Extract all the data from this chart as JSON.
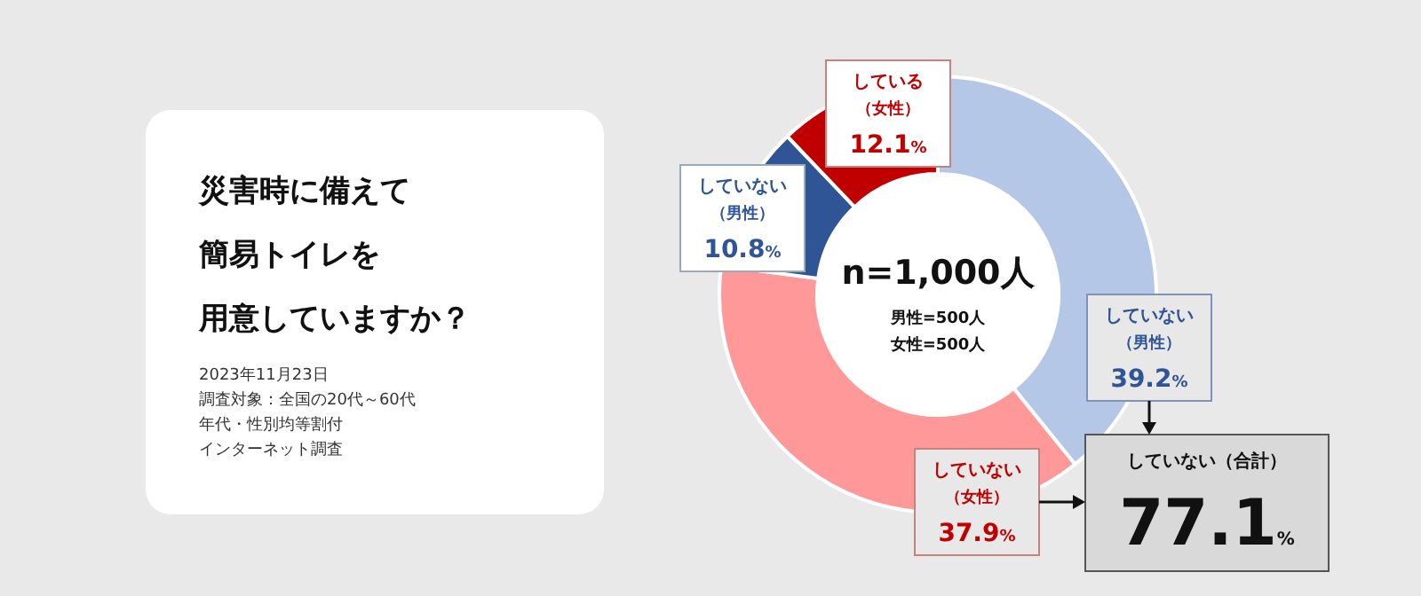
{
  "chart_data": {
    "type": "donut",
    "title": "災害時に備えて簡易トイレを用意していますか？",
    "categories": [
      "していない（男性）",
      "していない（女性）",
      "していない（男性）",
      "している（女性）"
    ],
    "values": [
      39.2,
      37.9,
      10.8,
      12.1
    ],
    "colors": [
      "#b4c7e7",
      "#ff9999",
      "#2f5597",
      "#c00000"
    ],
    "value_labels": [
      "39.2%",
      "37.9%",
      "10.8%",
      "12.1%"
    ],
    "annotations": [
      "n=1,000人",
      "男性=500人",
      "女性=500人",
      "2023年11月23日",
      "調査対象：全国の20代～60代",
      "年代・性別均等割付",
      "インターネット調査",
      "していない（合計）",
      "77.1%"
    ]
  }
}
